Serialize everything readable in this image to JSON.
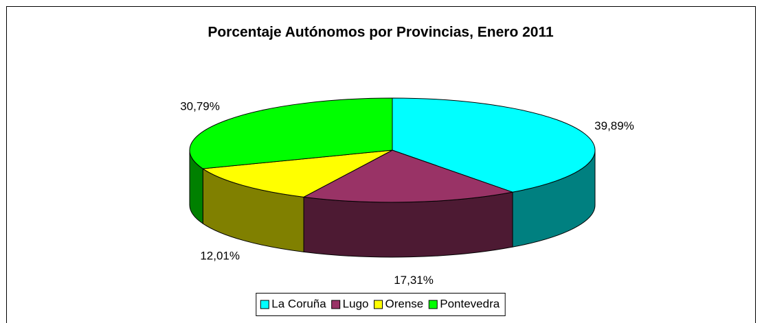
{
  "chart_data": {
    "type": "pie3d",
    "title": "Porcentaje Autónomos por Provincias, Enero 2011",
    "categories": [
      "La Coruña",
      "Lugo",
      "Orense",
      "Pontevedra"
    ],
    "values": [
      39.89,
      17.31,
      12.01,
      30.79
    ],
    "value_labels": [
      "39,89%",
      "17,31%",
      "12,01%",
      "30,79%"
    ],
    "colors": [
      "#00ffff",
      "#993366",
      "#ffff00",
      "#00ff00"
    ],
    "legend": "bottom"
  }
}
